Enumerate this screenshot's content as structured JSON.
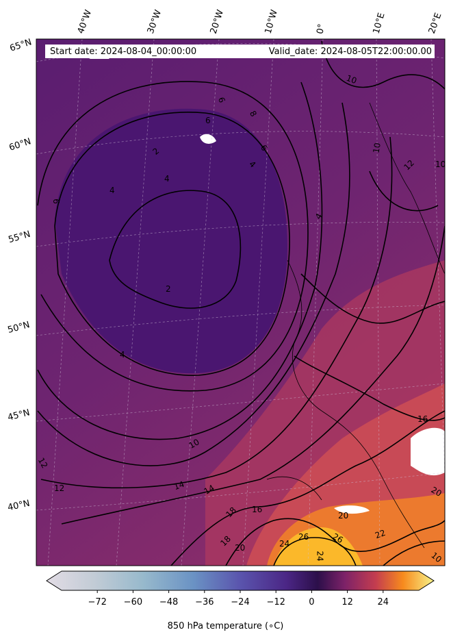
{
  "header": {
    "start_date": "Start date: 2024-08-04_00:00:00",
    "valid_date": "Valid_date: 2024-08-05T22:00:00.00"
  },
  "map": {
    "longitude_labels": [
      "40°W",
      "30°W",
      "20°W",
      "10°W",
      "0°",
      "10°E",
      "20°E"
    ],
    "latitude_labels": [
      "65°N",
      "60°N",
      "55°N",
      "50°N",
      "45°N",
      "40°N"
    ],
    "contour_labels": [
      "10",
      "10",
      "6",
      "8",
      "6",
      "4",
      "2",
      "4",
      "6",
      "4",
      "2",
      "4",
      "10",
      "12",
      "14",
      "14",
      "16",
      "18",
      "18",
      "20",
      "24",
      "26",
      "26",
      "24",
      "22",
      "20",
      "20",
      "16",
      "12",
      "10",
      "12",
      "10",
      "6",
      "4"
    ],
    "colors": {
      "cold": "#4a1670",
      "mid": "#7d2a6e",
      "warm": "#c7475a",
      "hot": "#f58b1d",
      "hottest": "#fbbe23",
      "contour": "#000000",
      "missing": "#ffffff"
    }
  },
  "colorbar": {
    "title": "850 hPa temperature (∘C)",
    "tick_labels": [
      "−72",
      "−60",
      "−48",
      "−36",
      "−24",
      "−12",
      "0",
      "12",
      "24"
    ],
    "range": [
      -84,
      36
    ],
    "ticks": [
      -72,
      -60,
      -48,
      -36,
      -24,
      -12,
      0,
      12,
      24
    ]
  }
}
